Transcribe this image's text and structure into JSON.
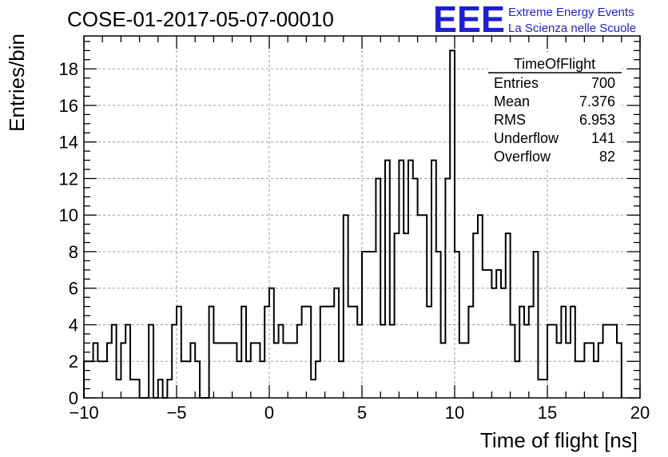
{
  "header": {
    "run_title": "COSE-01-2017-05-07-00010",
    "logo_mark": "EEE",
    "logo_line1": "Extreme Energy Events",
    "logo_line2": "La Scienza nelle Scuole"
  },
  "colors": {
    "logo": "#1f1fd0",
    "line": "#000000",
    "grid": "#9a9a9a",
    "background": "#ffffff"
  },
  "stats": {
    "title": "TimeOfFlight",
    "rows": [
      {
        "label": "Entries",
        "value": "700"
      },
      {
        "label": "Mean",
        "value": "7.376"
      },
      {
        "label": "RMS",
        "value": "6.953"
      },
      {
        "label": "Underflow",
        "value": "141"
      },
      {
        "label": "Overflow",
        "value": "82"
      }
    ]
  },
  "chart_data": {
    "type": "histogram",
    "title": "COSE-01-2017-05-07-00010",
    "xlabel": "Time of flight [ns]",
    "ylabel": "Entries/bin",
    "xlim": [
      -10,
      20
    ],
    "ylim": [
      0,
      19.8
    ],
    "grid": true,
    "bin_width": 0.25,
    "x_start": -10,
    "xticks": [
      -10,
      -5,
      0,
      5,
      10,
      15,
      20
    ],
    "xtick_labels": [
      "−10",
      "−5",
      "0",
      "5",
      "10",
      "15",
      "20"
    ],
    "yticks": [
      0,
      2,
      4,
      6,
      8,
      10,
      12,
      14,
      16,
      18
    ],
    "ytick_labels": [
      "0",
      "2",
      "4",
      "6",
      "8",
      "10",
      "12",
      "14",
      "16",
      "18"
    ],
    "values": [
      2,
      2,
      3,
      2,
      2,
      3,
      4,
      1,
      3,
      4,
      1,
      1,
      0,
      0,
      4,
      0,
      1,
      0,
      1,
      4,
      5,
      2,
      2,
      3,
      2,
      0,
      0,
      5,
      3,
      3,
      3,
      3,
      3,
      2,
      5,
      2,
      3,
      3,
      2,
      5,
      6,
      3,
      4,
      3,
      3,
      3,
      4,
      5,
      5,
      1,
      2,
      5,
      5,
      5,
      6,
      2,
      10,
      5,
      5,
      4,
      8,
      8,
      8,
      12,
      4,
      13,
      4,
      9,
      13,
      9,
      13,
      12,
      10,
      10,
      5,
      13,
      8,
      3,
      12,
      19,
      8,
      3,
      3,
      5,
      9,
      10,
      7,
      7,
      6,
      7,
      6,
      9,
      4,
      2,
      5,
      4,
      5,
      8,
      1,
      1,
      4,
      4,
      3,
      5,
      3,
      5,
      2,
      2,
      3,
      3,
      2,
      3,
      4,
      4,
      4,
      3
    ],
    "stats_box": {
      "title": "TimeOfFlight",
      "entries": 700,
      "mean": 7.376,
      "rms": 6.953,
      "underflow": 141,
      "overflow": 82
    }
  }
}
